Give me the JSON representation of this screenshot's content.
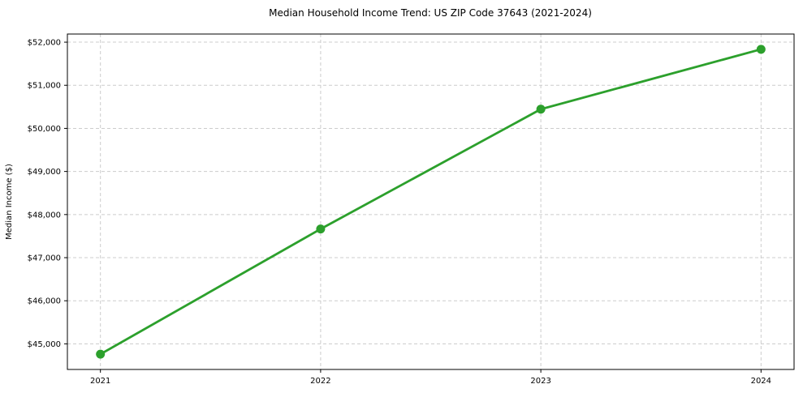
{
  "chart_data": {
    "type": "line",
    "title": "Median Household Income Trend: US ZIP Code 37643 (2021-2024)",
    "xlabel": "",
    "ylabel": "Median Income ($)",
    "x": [
      2021,
      2022,
      2023,
      2024
    ],
    "x_tick_labels": [
      "2021",
      "2022",
      "2023",
      "2024"
    ],
    "series": [
      {
        "name": "Median Household Income",
        "values": [
          44760,
          47665,
          50445,
          51835
        ],
        "color": "#2ca02c",
        "marker": "circle"
      }
    ],
    "y_ticks": [
      45000,
      46000,
      47000,
      48000,
      49000,
      50000,
      51000,
      52000
    ],
    "y_tick_labels": [
      "$45,000",
      "$46,000",
      "$47,000",
      "$48,000",
      "$49,000",
      "$50,000",
      "$51,000",
      "$52,000"
    ],
    "ylim": [
      44406,
      52189
    ],
    "xlim": [
      2020.85,
      2024.15
    ],
    "grid": {
      "visible": true,
      "style": "dashed",
      "color": "#cccccc"
    },
    "legend": {
      "visible": false,
      "position": "none"
    },
    "axis_color": "#000000",
    "text_color": "#000000",
    "background_color": "#ffffff"
  }
}
